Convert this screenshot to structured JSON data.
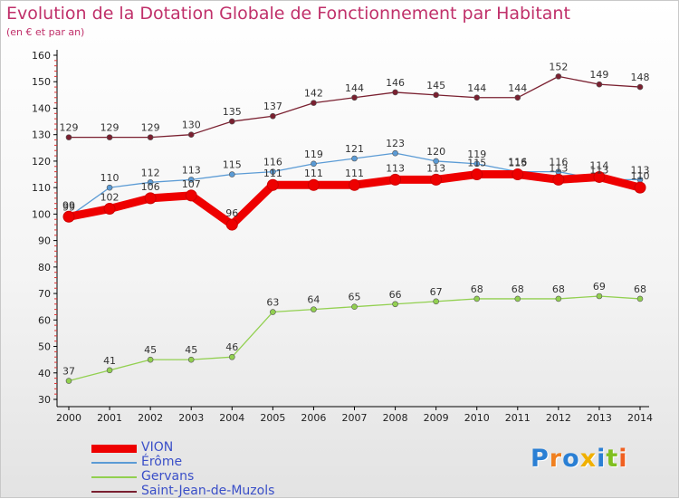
{
  "chart_data": {
    "type": "line",
    "title": "Evolution de la Dotation Globale de Fonctionnement par Habitant",
    "subtitle": "(en € et par an)",
    "xlabel": "",
    "ylabel": "",
    "x": [
      "2000",
      "2001",
      "2002",
      "2003",
      "2004",
      "2005",
      "2006",
      "2007",
      "2008",
      "2009",
      "2010",
      "2011",
      "2012",
      "2013",
      "2014"
    ],
    "y_ticks": [
      30,
      40,
      50,
      60,
      70,
      80,
      90,
      100,
      110,
      120,
      130,
      140,
      150,
      160
    ],
    "ylim": [
      30,
      160
    ],
    "grid": false,
    "legend_position": "bottom-left",
    "series": [
      {
        "name": "Saint-Jean-de-Muzols",
        "color": "#7a2030",
        "values": [
          129,
          129,
          129,
          130,
          135,
          137,
          142,
          144,
          146,
          145,
          144,
          144,
          152,
          149,
          148
        ]
      },
      {
        "name": "Érôme",
        "color": "#5b9bd5",
        "values": [
          99,
          110,
          112,
          113,
          115,
          116,
          119,
          121,
          123,
          120,
          119,
          116,
          116,
          113,
          113
        ]
      },
      {
        "name": "Gervans",
        "color": "#92d050",
        "values": [
          37,
          41,
          45,
          45,
          46,
          63,
          64,
          65,
          66,
          67,
          68,
          68,
          68,
          69,
          68
        ]
      },
      {
        "name": "VION",
        "color": "#ee0000",
        "values": [
          99,
          102,
          106,
          107,
          96,
          111,
          111,
          111,
          113,
          113,
          115,
          115,
          113,
          114,
          110
        ]
      }
    ],
    "legend_order": [
      "VION",
      "Érôme",
      "Gervans",
      "Saint-Jean-de-Muzols"
    ]
  },
  "logo": {
    "letters": [
      "P",
      "r",
      "o",
      "x",
      "i",
      "t",
      "i"
    ],
    "colors": [
      "#2a7fd4",
      "#f08020",
      "#2a7fd4",
      "#f0b000",
      "#2a7fd4",
      "#80c020",
      "#f06020"
    ]
  }
}
